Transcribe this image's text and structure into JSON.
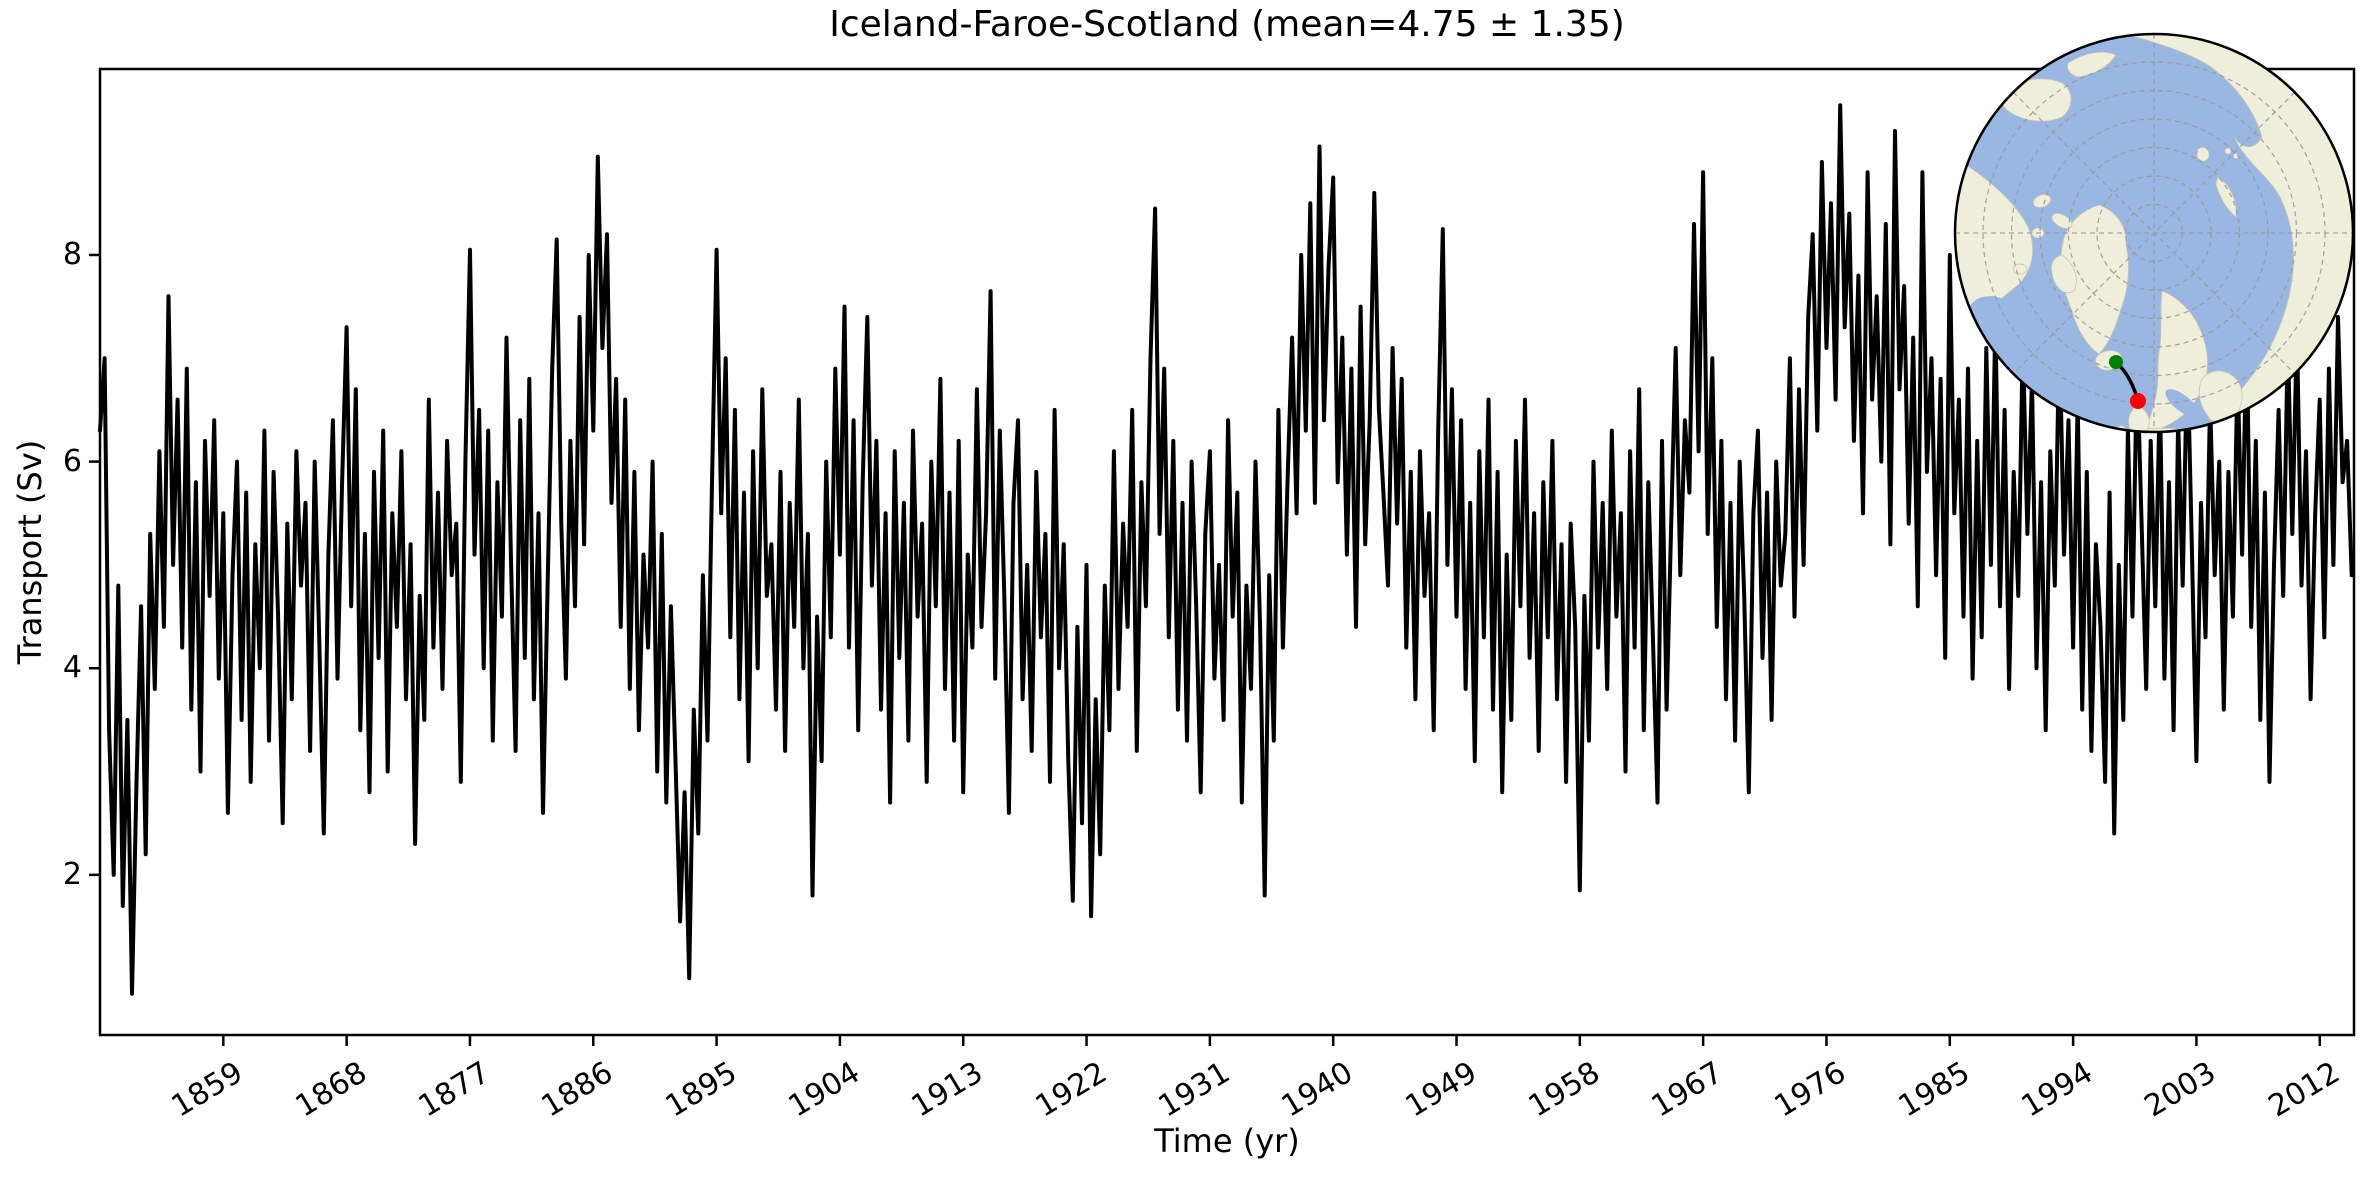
{
  "figure": {
    "background": "#ffffff"
  },
  "chart_data": {
    "type": "line",
    "title": "Iceland-Faroe-Scotland (mean=4.75 ± 1.35)",
    "xlabel": "Time (yr)",
    "ylabel": "Transport (Sv)",
    "series_name": "Iceland-Faroe-Scotland volume transport",
    "stats": {
      "mean": 4.75,
      "std": 1.35,
      "unit": "Sv"
    },
    "line_color": "#000000",
    "line_width": 4,
    "grid": false,
    "legend": "none",
    "xlim": [
      1850,
      2014.5
    ],
    "ylim": [
      0.45,
      9.8
    ],
    "xticks": [
      1859,
      1868,
      1877,
      1886,
      1895,
      1904,
      1913,
      1922,
      1931,
      1940,
      1949,
      1958,
      1967,
      1976,
      1985,
      1994,
      2003,
      2012
    ],
    "xtick_rotation_deg": 31,
    "yticks": [
      2,
      4,
      6,
      8
    ],
    "x_start": 1850.0,
    "x_step_years": 0.33333,
    "values": [
      6.3,
      7.0,
      3.4,
      2.0,
      4.8,
      1.7,
      3.5,
      0.85,
      2.9,
      4.6,
      2.2,
      5.3,
      3.8,
      6.1,
      4.4,
      7.6,
      5.0,
      6.6,
      4.2,
      6.9,
      3.6,
      5.8,
      3.0,
      6.2,
      4.7,
      6.4,
      3.9,
      5.5,
      2.6,
      4.9,
      6.0,
      3.5,
      5.7,
      2.9,
      5.2,
      4.0,
      6.3,
      3.3,
      5.9,
      4.5,
      2.5,
      5.4,
      3.7,
      6.1,
      4.8,
      5.6,
      3.2,
      6.0,
      4.3,
      2.4,
      5.1,
      6.4,
      3.9,
      5.8,
      7.3,
      4.6,
      6.7,
      3.4,
      5.3,
      2.8,
      5.9,
      4.1,
      6.3,
      3.0,
      5.5,
      4.4,
      6.1,
      3.7,
      5.2,
      2.3,
      4.7,
      3.5,
      6.6,
      4.2,
      5.7,
      3.8,
      6.2,
      4.9,
      5.4,
      2.9,
      6.0,
      8.05,
      5.1,
      6.5,
      4.0,
      6.3,
      3.3,
      5.8,
      4.5,
      7.2,
      5.0,
      3.2,
      6.4,
      4.1,
      6.8,
      3.7,
      5.5,
      2.6,
      4.8,
      6.9,
      8.15,
      5.4,
      3.9,
      6.2,
      4.6,
      7.4,
      5.2,
      8.0,
      6.3,
      8.95,
      7.1,
      8.2,
      5.6,
      6.8,
      4.4,
      6.6,
      3.8,
      5.9,
      3.4,
      5.1,
      4.2,
      6.0,
      3.0,
      5.3,
      2.7,
      4.6,
      3.1,
      1.55,
      2.8,
      1.0,
      3.6,
      2.4,
      4.9,
      3.3,
      5.8,
      8.05,
      5.5,
      7.0,
      4.3,
      6.5,
      3.7,
      5.7,
      3.1,
      6.1,
      4.0,
      6.7,
      4.7,
      5.2,
      3.6,
      5.9,
      3.2,
      5.6,
      4.4,
      6.6,
      4.0,
      5.3,
      1.8,
      4.5,
      3.1,
      6.0,
      4.3,
      6.9,
      5.1,
      7.5,
      4.2,
      6.4,
      3.4,
      5.8,
      7.4,
      4.8,
      6.2,
      3.6,
      5.5,
      2.7,
      6.1,
      4.1,
      5.6,
      3.3,
      6.3,
      4.5,
      5.4,
      2.9,
      6.0,
      4.6,
      6.8,
      3.8,
      5.7,
      3.3,
      6.2,
      2.8,
      5.1,
      4.2,
      6.7,
      4.4,
      5.5,
      7.65,
      3.9,
      6.3,
      4.7,
      2.6,
      5.6,
      6.4,
      3.7,
      5.0,
      3.2,
      5.9,
      4.3,
      5.3,
      2.9,
      6.5,
      4.0,
      5.2,
      3.1,
      1.75,
      4.4,
      2.5,
      5.0,
      1.6,
      3.7,
      2.2,
      4.8,
      3.4,
      6.1,
      3.8,
      5.4,
      4.4,
      6.5,
      3.2,
      5.8,
      4.6,
      7.0,
      8.45,
      5.3,
      6.9,
      4.3,
      6.2,
      3.6,
      5.6,
      3.3,
      6.0,
      4.6,
      2.8,
      5.3,
      6.1,
      3.9,
      5.0,
      3.5,
      6.4,
      4.5,
      5.7,
      2.7,
      4.8,
      3.8,
      6.0,
      4.4,
      1.8,
      4.9,
      3.3,
      6.5,
      4.2,
      5.8,
      7.2,
      5.5,
      8.0,
      6.3,
      8.5,
      5.6,
      9.05,
      6.4,
      7.9,
      8.75,
      5.8,
      7.2,
      5.1,
      6.9,
      4.4,
      7.5,
      5.2,
      6.4,
      8.6,
      6.5,
      5.7,
      4.8,
      7.1,
      5.4,
      6.8,
      4.2,
      5.9,
      3.7,
      6.1,
      4.7,
      5.5,
      3.4,
      6.3,
      8.25,
      5.0,
      6.7,
      4.5,
      6.4,
      3.8,
      5.6,
      3.1,
      6.1,
      4.3,
      6.6,
      3.6,
      5.9,
      2.8,
      5.1,
      3.5,
      6.2,
      4.6,
      6.6,
      4.1,
      5.5,
      3.2,
      5.8,
      4.3,
      6.2,
      3.7,
      5.2,
      2.9,
      5.4,
      4.4,
      1.85,
      4.7,
      3.3,
      6.0,
      4.2,
      5.6,
      3.8,
      6.3,
      4.5,
      5.5,
      3.0,
      6.1,
      4.2,
      6.7,
      3.4,
      5.8,
      4.3,
      2.7,
      6.2,
      3.6,
      5.4,
      7.1,
      4.9,
      6.4,
      5.7,
      8.3,
      6.1,
      8.8,
      5.3,
      7.0,
      4.4,
      6.2,
      3.7,
      5.6,
      3.3,
      6.0,
      4.7,
      2.8,
      5.5,
      6.3,
      4.1,
      5.7,
      3.5,
      6.0,
      4.8,
      5.3,
      7.0,
      4.5,
      6.7,
      5.0,
      7.4,
      8.2,
      6.3,
      8.9,
      7.1,
      8.5,
      6.6,
      9.45,
      7.3,
      8.4,
      6.2,
      7.8,
      5.5,
      8.8,
      6.6,
      7.6,
      6.0,
      8.3,
      5.2,
      9.2,
      6.7,
      7.7,
      5.4,
      7.2,
      4.6,
      8.8,
      5.9,
      7.0,
      4.9,
      6.8,
      4.1,
      8.0,
      5.5,
      6.6,
      4.5,
      6.9,
      3.9,
      6.2,
      4.3,
      7.1,
      5.0,
      7.4,
      4.6,
      6.5,
      3.8,
      5.9,
      4.7,
      7.2,
      5.3,
      6.8,
      4.0,
      5.8,
      3.4,
      6.1,
      4.8,
      7.3,
      5.1,
      6.4,
      4.2,
      6.6,
      3.6,
      5.9,
      3.2,
      5.2,
      4.4,
      2.9,
      5.7,
      2.4,
      5.0,
      3.5,
      6.3,
      4.5,
      7.0,
      5.4,
      3.8,
      6.2,
      4.6,
      6.7,
      3.9,
      5.8,
      3.4,
      6.4,
      4.8,
      7.1,
      5.2,
      3.1,
      5.6,
      4.3,
      6.6,
      4.9,
      6.0,
      3.6,
      5.9,
      4.5,
      6.9,
      5.1,
      7.3,
      4.4,
      6.2,
      3.5,
      5.7,
      2.9,
      5.0,
      6.5,
      4.7,
      7.2,
      5.3,
      7.3,
      4.8,
      6.1,
      3.7,
      5.5,
      6.6,
      4.3,
      6.9,
      5.0,
      7.4,
      5.8,
      6.2,
      4.9
    ]
  },
  "inset_map": {
    "projection": "north-polar-stereographic",
    "ocean_color": "#9ab7e3",
    "land_color": "#efeedb",
    "coast_color": "#c9c7ae",
    "graticule_color": "#999999",
    "border_color": "#000000",
    "section": {
      "name": "Iceland-Faroe-Scotland section",
      "line_color": "#000000",
      "start_marker_color": "#008000",
      "end_marker_color": "#ff0000"
    }
  }
}
